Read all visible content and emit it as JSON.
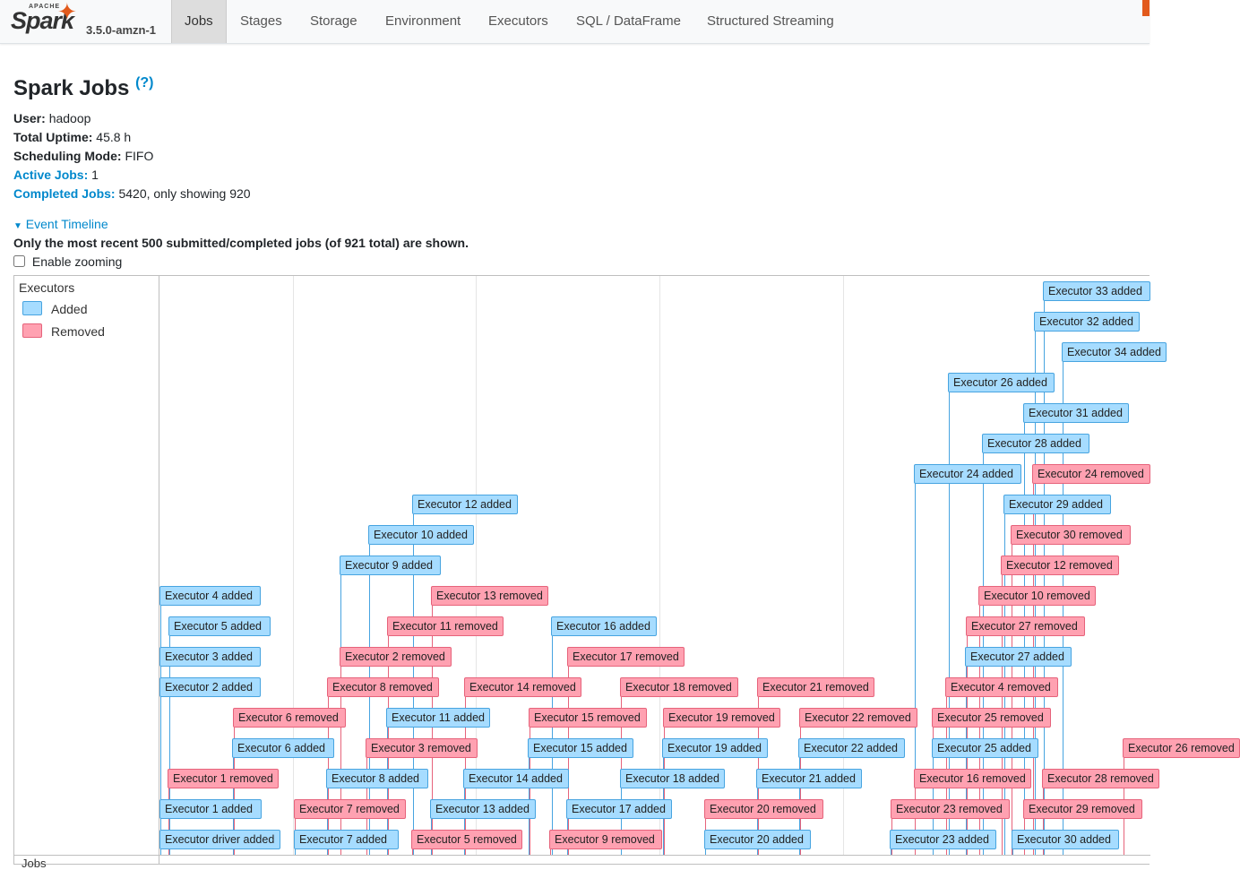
{
  "nav": {
    "brand_apache": "APACHE",
    "brand_name": "Spark",
    "version": "3.5.0-amzn-1",
    "tabs": [
      "Jobs",
      "Stages",
      "Storage",
      "Environment",
      "Executors",
      "SQL / DataFrame",
      "Structured Streaming"
    ],
    "active_tab": "Jobs"
  },
  "page": {
    "title": "Spark Jobs",
    "help": "(?)",
    "user_label": "User:",
    "user": "hadoop",
    "uptime_label": "Total Uptime:",
    "uptime": "45.8 h",
    "scheduling_label": "Scheduling Mode:",
    "scheduling": "FIFO",
    "active_label": "Active Jobs:",
    "active": "1",
    "completed_label": "Completed Jobs:",
    "completed": "5420, only showing 920"
  },
  "timeline": {
    "toggle": "Event Timeline",
    "note": "Only the most recent 500 submitted/completed jobs (of 921 total) are shown.",
    "zoom_label": "Enable zooming",
    "group_executors": "Executors",
    "group_jobs": "Jobs",
    "legend_added": "Added",
    "legend_removed": "Removed",
    "colors": {
      "added": "#a6dcff",
      "removed": "#ffa1b1"
    },
    "items": [
      {
        "t": "Executor 33 added",
        "k": "added"
      },
      {
        "t": "Executor 32 added",
        "k": "added"
      },
      {
        "t": "Executor 34 added",
        "k": "added"
      },
      {
        "t": "Executor 26 added",
        "k": "added"
      },
      {
        "t": "Executor 31 added",
        "k": "added"
      },
      {
        "t": "Executor 28 added",
        "k": "added"
      },
      {
        "t": "Executor 24 added",
        "k": "added"
      },
      {
        "t": "Executor 24 removed",
        "k": "removed"
      },
      {
        "t": "Executor 12 added",
        "k": "added"
      },
      {
        "t": "Executor 29 added",
        "k": "added"
      },
      {
        "t": "Executor 10 added",
        "k": "added"
      },
      {
        "t": "Executor 30 removed",
        "k": "removed"
      },
      {
        "t": "Executor 9 added",
        "k": "added"
      },
      {
        "t": "Executor 12 removed",
        "k": "removed"
      },
      {
        "t": "Executor 4 added",
        "k": "added"
      },
      {
        "t": "Executor 13 removed",
        "k": "removed"
      },
      {
        "t": "Executor 10 removed",
        "k": "removed"
      },
      {
        "t": "Executor 5 added",
        "k": "added"
      },
      {
        "t": "Executor 11 removed",
        "k": "removed"
      },
      {
        "t": "Executor 16 added",
        "k": "added"
      },
      {
        "t": "Executor 27 removed",
        "k": "removed"
      },
      {
        "t": "Executor 3 added",
        "k": "added"
      },
      {
        "t": "Executor 2 removed",
        "k": "removed"
      },
      {
        "t": "Executor 17 removed",
        "k": "removed"
      },
      {
        "t": "Executor 27 added",
        "k": "added"
      },
      {
        "t": "Executor 2 added",
        "k": "added"
      },
      {
        "t": "Executor 8 removed",
        "k": "removed"
      },
      {
        "t": "Executor 14 removed",
        "k": "removed"
      },
      {
        "t": "Executor 18 removed",
        "k": "removed"
      },
      {
        "t": "Executor 21 removed",
        "k": "removed"
      },
      {
        "t": "Executor 4 removed",
        "k": "removed"
      },
      {
        "t": "Executor 6 removed",
        "k": "removed"
      },
      {
        "t": "Executor 11 added",
        "k": "added"
      },
      {
        "t": "Executor 15 removed",
        "k": "removed"
      },
      {
        "t": "Executor 19 removed",
        "k": "removed"
      },
      {
        "t": "Executor 22 removed",
        "k": "removed"
      },
      {
        "t": "Executor 25 removed",
        "k": "removed"
      },
      {
        "t": "Executor 6 added",
        "k": "added"
      },
      {
        "t": "Executor 3 removed",
        "k": "removed"
      },
      {
        "t": "Executor 15 added",
        "k": "added"
      },
      {
        "t": "Executor 19 added",
        "k": "added"
      },
      {
        "t": "Executor 22 added",
        "k": "added"
      },
      {
        "t": "Executor 25 added",
        "k": "added"
      },
      {
        "t": "Executor 26 removed",
        "k": "removed"
      },
      {
        "t": "Executor 1 removed",
        "k": "removed"
      },
      {
        "t": "Executor 8 added",
        "k": "added"
      },
      {
        "t": "Executor 14 added",
        "k": "added"
      },
      {
        "t": "Executor 18 added",
        "k": "added"
      },
      {
        "t": "Executor 21 added",
        "k": "added"
      },
      {
        "t": "Executor 16 removed",
        "k": "removed"
      },
      {
        "t": "Executor 28 removed",
        "k": "removed"
      },
      {
        "t": "Executor 1 added",
        "k": "added"
      },
      {
        "t": "Executor 7 removed",
        "k": "removed"
      },
      {
        "t": "Executor 13 added",
        "k": "added"
      },
      {
        "t": "Executor 17 added",
        "k": "added"
      },
      {
        "t": "Executor 20 removed",
        "k": "removed"
      },
      {
        "t": "Executor 23 removed",
        "k": "removed"
      },
      {
        "t": "Executor 29 removed",
        "k": "removed"
      },
      {
        "t": "Executor driver added",
        "k": "added"
      },
      {
        "t": "Executor 7 added",
        "k": "added"
      },
      {
        "t": "Executor 5 removed",
        "k": "removed"
      },
      {
        "t": "Executor 9 removed",
        "k": "removed"
      },
      {
        "t": "Executor 20 added",
        "k": "added"
      },
      {
        "t": "Executor 23 added",
        "k": "added"
      },
      {
        "t": "Executor 30 added",
        "k": "added"
      }
    ]
  }
}
